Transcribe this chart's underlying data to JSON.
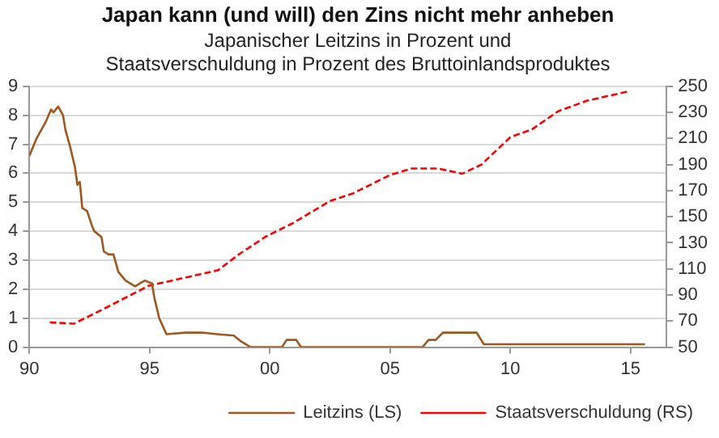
{
  "chart_data": {
    "type": "line",
    "title": "Japan kann (und will) den Zins nicht mehr anheben",
    "subtitle": "Japanischer Leitzins in Prozent und\nStaatsverschuldung in Prozent des Bruttoinlandsproduktes",
    "series": [
      {
        "name": "Leitzins (LS)",
        "color": "#a0561e",
        "line_style": "solid",
        "x": [
          1990.0,
          1990.3,
          1990.7,
          1990.9,
          1991.0,
          1991.2,
          1991.4,
          1991.5,
          1991.7,
          1991.9,
          1992.0,
          1992.1,
          1992.2,
          1992.4,
          1992.6,
          1992.7,
          1993.0,
          1993.1,
          1993.3,
          1993.5,
          1993.7,
          1994.0,
          1994.4,
          1994.6,
          1994.8,
          1995.1,
          1995.2,
          1995.4,
          1995.7,
          1996.5,
          1997.2,
          1997.8,
          1998.5,
          1998.8,
          1999.2,
          2000.5,
          2000.7,
          2001.1,
          2001.3,
          2006.35,
          2006.6,
          2006.9,
          2007.2,
          2008.6,
          2008.9,
          2011.0,
          2015.6
        ],
        "values": [
          6.6,
          7.2,
          7.8,
          8.2,
          8.1,
          8.3,
          8.0,
          7.5,
          6.9,
          6.2,
          5.6,
          5.7,
          4.8,
          4.7,
          4.2,
          4.0,
          3.8,
          3.3,
          3.2,
          3.2,
          2.6,
          2.3,
          2.1,
          2.2,
          2.3,
          2.2,
          1.7,
          1.0,
          0.45,
          0.5,
          0.5,
          0.45,
          0.4,
          0.2,
          0,
          0,
          0.25,
          0.25,
          0,
          0,
          0.25,
          0.25,
          0.5,
          0.5,
          0.1,
          0.1,
          0.1
        ]
      },
      {
        "name": "Staatsverschuldung (RS)",
        "color": "#ff0000",
        "line_style": "dashed",
        "axis": "y2",
        "x": [
          1990.85,
          1991.85,
          1992.95,
          1994.95,
          1997.85,
          1998.7,
          1999.85,
          2000.95,
          2002.5,
          2003.47,
          2005.0,
          2005.9,
          2007.0,
          2008.0,
          2008.8,
          2010.0,
          2010.9,
          2012.0,
          2013.2,
          2014.9
        ],
        "values": [
          69,
          68,
          78,
          97,
          109,
          121,
          135,
          145,
          162,
          168,
          182,
          187,
          187,
          183,
          190,
          211,
          217,
          231,
          239,
          246
        ]
      }
    ],
    "xlim": [
      1990,
      2016.5
    ],
    "xticks": [
      {
        "value": 1990,
        "label": "90"
      },
      {
        "value": 1995,
        "label": "95"
      },
      {
        "value": 2000,
        "label": "00"
      },
      {
        "value": 2005,
        "label": "05"
      },
      {
        "value": 2010,
        "label": "10"
      },
      {
        "value": 2015,
        "label": "15"
      }
    ],
    "ylim": [
      0,
      9
    ],
    "yticks": [
      0,
      1,
      2,
      3,
      4,
      5,
      6,
      7,
      8,
      9
    ],
    "y2lim": [
      50,
      250
    ],
    "y2ticks": [
      50,
      70,
      90,
      110,
      130,
      150,
      170,
      190,
      210,
      230,
      250
    ],
    "grid": "y",
    "legend": "bottom",
    "marker": "none"
  }
}
